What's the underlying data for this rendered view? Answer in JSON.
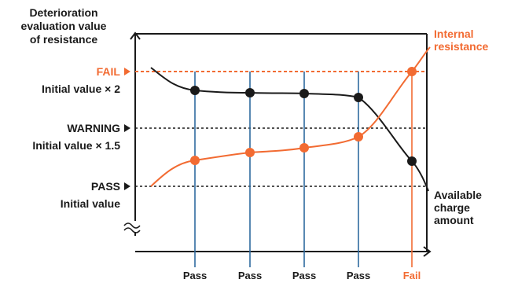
{
  "y_axis_title": [
    "Deterioration",
    "evaluation value",
    "of resistance"
  ],
  "levels": {
    "fail": {
      "label": "FAIL",
      "sub": "Initial value × 2"
    },
    "warning": {
      "label": "WARNING",
      "sub": "Initial value × 1.5"
    },
    "pass": {
      "label": "PASS",
      "sub": "Initial value"
    }
  },
  "series": {
    "internal_resistance": {
      "label": [
        "Internal",
        "resistance"
      ]
    },
    "available_charge": {
      "label": [
        "Available",
        "charge",
        "amount"
      ]
    }
  },
  "results": [
    "Pass",
    "Pass",
    "Pass",
    "Pass",
    "Fail"
  ],
  "colors": {
    "orange": "#f26b32",
    "blue": "#2e6b9e",
    "dark": "#1a1a1a"
  }
}
